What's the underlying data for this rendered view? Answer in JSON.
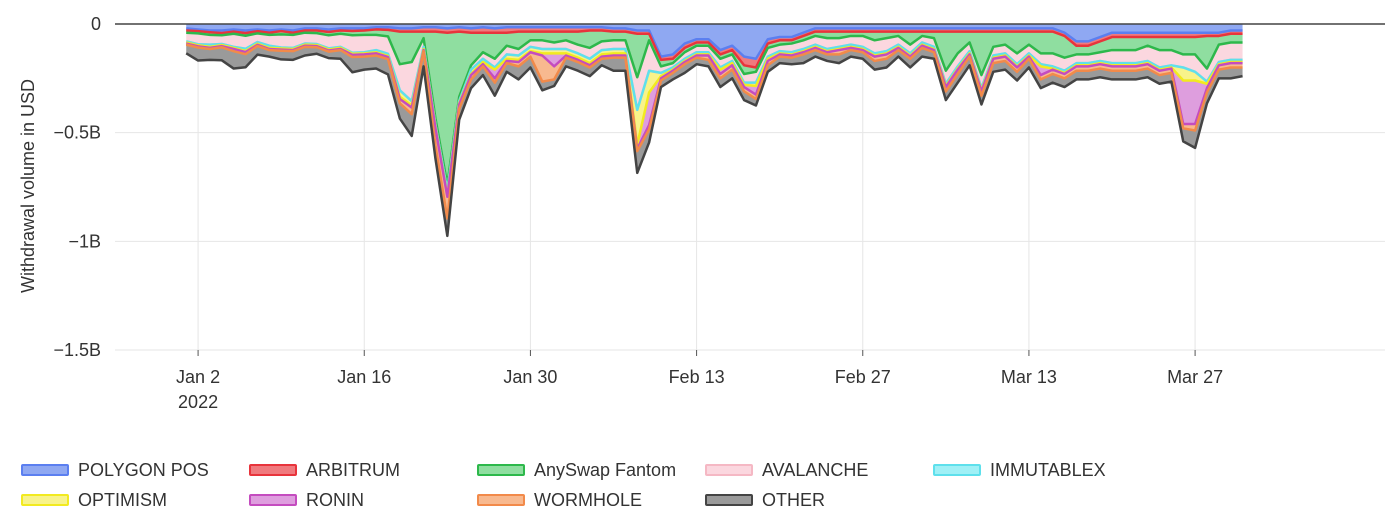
{
  "chart_data": {
    "type": "area",
    "stacked": true,
    "ylabel": "Withdrawal volume in USD",
    "xlabel": "",
    "ylim": [
      -1500000000,
      0
    ],
    "y_ticks": [
      {
        "value": 0,
        "label": "0"
      },
      {
        "value": -500000000,
        "label": "−0.5B"
      },
      {
        "value": -1000000000,
        "label": "−1B"
      },
      {
        "value": -1500000000,
        "label": "−1.5B"
      }
    ],
    "x_ticks": [
      {
        "date": "2022-01-02",
        "label": "Jan 2",
        "sublabel": "2022"
      },
      {
        "date": "2022-01-16",
        "label": "Jan 16"
      },
      {
        "date": "2022-01-30",
        "label": "Jan 30"
      },
      {
        "date": "2022-02-13",
        "label": "Feb 13"
      },
      {
        "date": "2022-02-27",
        "label": "Feb 27"
      },
      {
        "date": "2022-03-13",
        "label": "Mar 13"
      },
      {
        "date": "2022-03-27",
        "label": "Mar 27"
      }
    ],
    "x_start": "2022-01-01",
    "x_end": "2022-03-31",
    "grid": true,
    "legend_position": "bottom",
    "series": [
      {
        "name": "POLYGON POS",
        "color": "#5b7ff0",
        "fill": "#8fa8f2",
        "values": [
          -20,
          -25,
          -30,
          -30,
          -25,
          -30,
          -25,
          -30,
          -25,
          -30,
          -20,
          -20,
          -25,
          -20,
          -20,
          -20,
          -15,
          -15,
          -20,
          -20,
          -15,
          -15,
          -20,
          -15,
          -20,
          -15,
          -20,
          -15,
          -15,
          -15,
          -15,
          -15,
          -15,
          -15,
          -15,
          -15,
          -20,
          -20,
          -30,
          -30,
          -150,
          -140,
          -90,
          -70,
          -70,
          -120,
          -100,
          -150,
          -160,
          -70,
          -60,
          -60,
          -40,
          -20,
          -20,
          -20,
          -20,
          -20,
          -20,
          -20,
          -20,
          -20,
          -20,
          -20,
          -20,
          -20,
          -20,
          -20,
          -20,
          -20,
          -20,
          -20,
          -20,
          -20,
          -40,
          -80,
          -80,
          -60,
          -40,
          -40,
          -40,
          -40,
          -40,
          -40,
          -40,
          -40,
          -40,
          -40,
          -30,
          -30
        ]
      },
      {
        "name": "ARBITRUM",
        "color": "#e8343c",
        "fill": "#f07a7e",
        "values": [
          -10,
          -8,
          -8,
          -12,
          -10,
          -12,
          -8,
          -10,
          -8,
          -10,
          -10,
          -10,
          -12,
          -10,
          -12,
          -10,
          -10,
          -12,
          -15,
          -15,
          -20,
          -20,
          -20,
          -20,
          -20,
          -25,
          -20,
          -25,
          -20,
          -20,
          -20,
          -20,
          -20,
          -20,
          -15,
          -15,
          -15,
          -15,
          -15,
          -15,
          -15,
          -20,
          -20,
          -15,
          -15,
          -20,
          -20,
          -40,
          -40,
          -20,
          -15,
          -15,
          -15,
          -15,
          -15,
          -15,
          -15,
          -15,
          -15,
          -15,
          -15,
          -15,
          -15,
          -15,
          -15,
          -15,
          -15,
          -15,
          -15,
          -15,
          -15,
          -15,
          -15,
          -15,
          -15,
          -20,
          -20,
          -20,
          -20,
          -20,
          -20,
          -20,
          -20,
          -20,
          -20,
          -20,
          -15,
          -15,
          -15,
          -15
        ]
      },
      {
        "name": "AnySwap Fantom",
        "color": "#2db84b",
        "fill": "#8fdea0",
        "values": [
          -10,
          -10,
          -12,
          -10,
          -10,
          -12,
          -10,
          -10,
          -15,
          -10,
          -10,
          -12,
          -15,
          -15,
          -20,
          -20,
          -25,
          -30,
          -150,
          -140,
          -30,
          -400,
          -700,
          -300,
          -150,
          -90,
          -120,
          -60,
          -80,
          -40,
          -40,
          -50,
          -40,
          -60,
          -80,
          -50,
          -40,
          -40,
          -200,
          -30,
          -30,
          -20,
          -20,
          -15,
          -15,
          -20,
          -20,
          -40,
          -20,
          -20,
          -20,
          -15,
          -20,
          -20,
          -30,
          -30,
          -20,
          -20,
          -40,
          -30,
          -20,
          -60,
          -20,
          -30,
          -180,
          -100,
          -50,
          -200,
          -70,
          -60,
          -100,
          -60,
          -100,
          -100,
          -100,
          -40,
          -40,
          -50,
          -60,
          -60,
          -60,
          -40,
          -60,
          -60,
          -80,
          -80,
          -150,
          -40,
          -40,
          -40
        ]
      },
      {
        "name": "AVALANCHE",
        "color": "#f5b8c4",
        "fill": "#fbd7df",
        "values": [
          -40,
          -50,
          -45,
          -40,
          -60,
          -60,
          -40,
          -50,
          -60,
          -60,
          -50,
          -50,
          -60,
          -60,
          -80,
          -80,
          -70,
          -80,
          -120,
          -180,
          -40,
          -30,
          -30,
          -20,
          -20,
          -30,
          -40,
          -40,
          -30,
          -30,
          -40,
          -30,
          -40,
          -40,
          -50,
          -40,
          -40,
          -40,
          -150,
          -140,
          -30,
          -20,
          -30,
          -30,
          -30,
          -40,
          -30,
          -40,
          -50,
          -40,
          -30,
          -40,
          -40,
          -40,
          -50,
          -40,
          -40,
          -50,
          -60,
          -60,
          -40,
          -40,
          -30,
          -40,
          -60,
          -60,
          -40,
          -60,
          -40,
          -40,
          -50,
          -40,
          -50,
          -60,
          -60,
          -40,
          -40,
          -40,
          -60,
          -60,
          -60,
          -70,
          -80,
          -70,
          -60,
          -80,
          -60,
          -80,
          -80,
          -80
        ]
      },
      {
        "name": "IMMUTABLEX",
        "color": "#5ee0ec",
        "fill": "#9ff0f6",
        "values": [
          0,
          0,
          0,
          0,
          0,
          0,
          0,
          0,
          0,
          0,
          0,
          0,
          0,
          0,
          0,
          0,
          0,
          0,
          0,
          0,
          0,
          0,
          0,
          0,
          0,
          0,
          0,
          0,
          0,
          0,
          0,
          0,
          0,
          0,
          0,
          0,
          0,
          0,
          0,
          0,
          0,
          0,
          0,
          0,
          0,
          0,
          0,
          0,
          0,
          0,
          0,
          0,
          0,
          0,
          0,
          0,
          0,
          0,
          0,
          0,
          0,
          0,
          0,
          0,
          0,
          0,
          0,
          0,
          0,
          0,
          0,
          0,
          0,
          0,
          0,
          0,
          0,
          0,
          0,
          0,
          0,
          0,
          0,
          0,
          0,
          0,
          0,
          0,
          0,
          0
        ]
      },
      {
        "name": "OPTIMISM",
        "color": "#f2ea1f",
        "fill": "#f8f38a",
        "values": [
          -5,
          -5,
          -10,
          -5,
          -5,
          -10,
          -8,
          -10,
          -5,
          -5,
          -5,
          -5,
          -5,
          -5,
          -5,
          -5,
          -10,
          -10,
          -30,
          -20,
          -10,
          -10,
          -20,
          -10,
          -20,
          -15,
          -10,
          -20,
          -20,
          -20,
          -20,
          -20,
          -20,
          -20,
          -20,
          -20,
          -20,
          -20,
          -160,
          -100,
          -15,
          -10,
          -10,
          -10,
          -10,
          -10,
          -10,
          -10,
          -15,
          -10,
          -10,
          -10,
          -10,
          -10,
          -10,
          -10,
          -10,
          -10,
          -10,
          -10,
          -10,
          -10,
          -10,
          -10,
          -10,
          -10,
          -10,
          -10,
          -10,
          -10,
          -10,
          -10,
          -10,
          -10,
          -10,
          -10,
          -10,
          -10,
          -10,
          -10,
          -10,
          -10,
          -10,
          -10,
          -60,
          -40,
          -10,
          -10,
          -10,
          -10
        ]
      },
      {
        "name": "RONIN",
        "color": "#c44cbf",
        "fill": "#de9ede",
        "values": [
          -5,
          -5,
          -5,
          -5,
          -5,
          -5,
          -5,
          -5,
          -5,
          -5,
          -5,
          -5,
          -5,
          -5,
          -5,
          -5,
          -5,
          -5,
          -10,
          -10,
          -5,
          -5,
          -5,
          -5,
          -5,
          -10,
          -40,
          -10,
          -10,
          -5,
          -10,
          -60,
          -10,
          -10,
          -10,
          -10,
          -10,
          -10,
          -20,
          -150,
          -10,
          -5,
          -5,
          -5,
          -5,
          -20,
          -10,
          -10,
          -40,
          -10,
          -5,
          -5,
          -5,
          -5,
          -5,
          -5,
          -5,
          -5,
          -5,
          -5,
          -5,
          -5,
          -5,
          -5,
          -5,
          -5,
          -5,
          -5,
          -5,
          -5,
          -5,
          -5,
          -40,
          -5,
          -5,
          -5,
          -5,
          -5,
          -5,
          -5,
          -5,
          -5,
          -5,
          -5,
          -200,
          -200,
          -20,
          -5,
          -5,
          -5
        ]
      },
      {
        "name": "WORMHOLE",
        "color": "#f28a4a",
        "fill": "#f8b98f",
        "values": [
          -5,
          -5,
          -5,
          -5,
          -10,
          -10,
          -5,
          -5,
          -5,
          -5,
          -5,
          -5,
          -5,
          -5,
          -10,
          -10,
          -10,
          -10,
          -20,
          -30,
          -5,
          -80,
          -100,
          -20,
          -20,
          -10,
          -20,
          -10,
          -20,
          -20,
          -120,
          -60,
          -10,
          -10,
          -10,
          -10,
          -10,
          -10,
          -10,
          -20,
          -10,
          -10,
          -10,
          -10,
          -20,
          -20,
          -20,
          -20,
          -20,
          -20,
          -10,
          -10,
          -10,
          -10,
          -10,
          -20,
          -10,
          -10,
          -20,
          -20,
          -10,
          -10,
          -10,
          -10,
          -20,
          -20,
          -10,
          -20,
          -20,
          -20,
          -20,
          -10,
          -20,
          -20,
          -20,
          -20,
          -20,
          -20,
          -20,
          -20,
          -20,
          -20,
          -20,
          -20,
          -20,
          -30,
          -20,
          -20,
          -20,
          -20
        ]
      },
      {
        "name": "OTHER",
        "color": "#444444",
        "fill": "#9a9a9a",
        "values": [
          -40,
          -60,
          -50,
          -60,
          -80,
          -60,
          -40,
          -30,
          -40,
          -40,
          -40,
          -30,
          -30,
          -40,
          -70,
          -60,
          -60,
          -70,
          -70,
          -100,
          -70,
          -60,
          -80,
          -50,
          -40,
          -40,
          -60,
          -40,
          -60,
          -50,
          -40,
          -30,
          -40,
          -40,
          -40,
          -30,
          -60,
          -60,
          -100,
          -60,
          -30,
          -30,
          -40,
          -30,
          -30,
          -40,
          -40,
          -40,
          -30,
          -30,
          -30,
          -30,
          -40,
          -30,
          -30,
          -40,
          -30,
          -30,
          -40,
          -40,
          -30,
          -40,
          -40,
          -30,
          -40,
          -40,
          -40,
          -40,
          -40,
          -40,
          -40,
          -40,
          -40,
          -40,
          -40,
          -40,
          -40,
          -40,
          -40,
          -40,
          -40,
          -40,
          -40,
          -40,
          -60,
          -80,
          -50,
          -40,
          -50,
          -40
        ]
      }
    ]
  }
}
